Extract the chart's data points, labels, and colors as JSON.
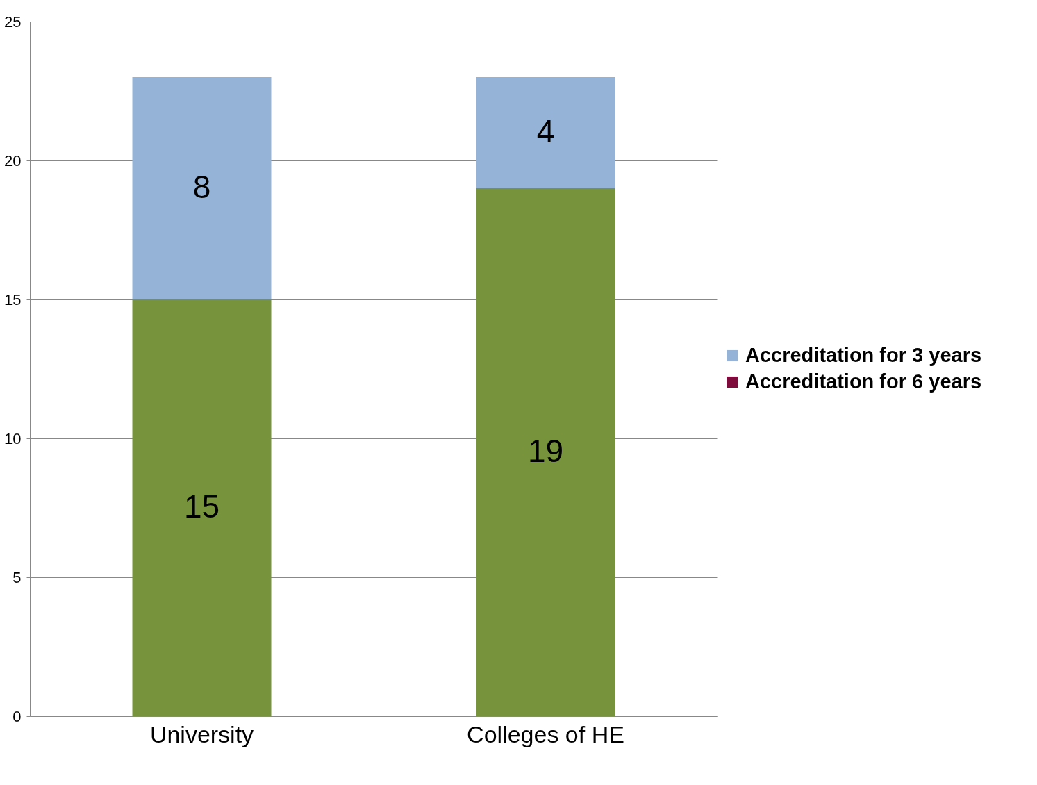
{
  "chart_data": {
    "type": "bar",
    "stacked": true,
    "categories": [
      "University",
      "Colleges of HE"
    ],
    "series": [
      {
        "color": "#77933c",
        "values": [
          15,
          19
        ]
      },
      {
        "name": "Accreditation for 3 years",
        "color": "#95b3d7",
        "values": [
          8,
          4
        ]
      },
      {
        "name": "Accreditation for 6 years",
        "color": "#7f0a3c",
        "values": [
          null,
          null
        ]
      }
    ],
    "ylim": [
      0,
      25
    ],
    "yticks": [
      0,
      5,
      10,
      15,
      20,
      25
    ],
    "grid": "y",
    "legend": "right",
    "data_labels": true
  }
}
